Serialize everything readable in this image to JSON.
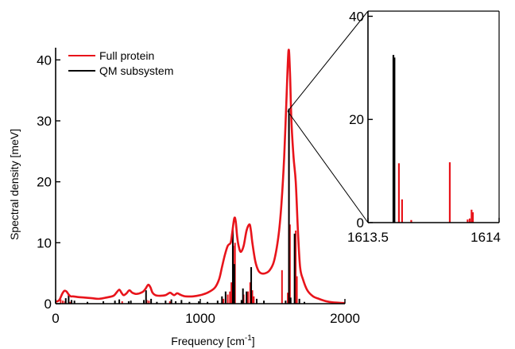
{
  "chart_data": [
    {
      "type": "line",
      "xlabel": "Frequency [cm",
      "xlabel_sup": "-1",
      "xlabel_end": "]",
      "ylabel": "Spectral density [meV]",
      "xlim": [
        0,
        2000
      ],
      "ylim": [
        0,
        42
      ],
      "x_ticks": [
        "0",
        "1000",
        "2000"
      ],
      "y_ticks": [
        "0",
        "10",
        "20",
        "30",
        "40"
      ],
      "legend": {
        "placement": "top-left",
        "entries": [
          {
            "name": "Full protein",
            "color": "#e8141b"
          },
          {
            "name": "QM subsystem",
            "color": "#000000"
          }
        ]
      },
      "series": [
        {
          "name": "Full protein",
          "color": "#e8141b",
          "style": "smooth-line",
          "x": [
            0,
            25,
            45,
            60,
            75,
            90,
            105,
            120,
            150,
            200,
            250,
            300,
            350,
            400,
            420,
            440,
            455,
            470,
            490,
            510,
            530,
            560,
            600,
            620,
            640,
            655,
            670,
            690,
            720,
            760,
            790,
            805,
            820,
            840,
            860,
            880,
            900,
            950,
            1000,
            1050,
            1100,
            1130,
            1150,
            1170,
            1190,
            1210,
            1220,
            1235,
            1245,
            1255,
            1265,
            1280,
            1300,
            1320,
            1340,
            1350,
            1360,
            1380,
            1400,
            1420,
            1450,
            1480,
            1510,
            1540,
            1560,
            1580,
            1595,
            1610,
            1620,
            1630,
            1645,
            1660,
            1675,
            1690,
            1710,
            1740,
            1780,
            1820,
            1870,
            1920,
            2000
          ],
          "y": [
            0.3,
            0.6,
            1.6,
            2.1,
            2.0,
            1.5,
            1.2,
            1.2,
            1.1,
            1.0,
            0.9,
            0.8,
            1.0,
            1.3,
            1.8,
            2.3,
            1.8,
            1.4,
            1.7,
            2.2,
            1.8,
            1.6,
            1.9,
            2.4,
            3.1,
            2.7,
            1.8,
            1.4,
            1.3,
            1.4,
            1.8,
            1.6,
            1.4,
            1.7,
            1.5,
            1.3,
            1.2,
            1.2,
            1.4,
            1.8,
            2.6,
            4.0,
            6.0,
            8.0,
            9.5,
            10.0,
            11.5,
            14.0,
            13.5,
            11.0,
            9.5,
            8.5,
            9.5,
            12.0,
            13.0,
            12.0,
            10.0,
            7.0,
            5.5,
            5.0,
            5.0,
            5.5,
            7.0,
            11.0,
            16.0,
            24.0,
            33.0,
            41.5,
            38.0,
            30.0,
            24.0,
            20.0,
            12.0,
            6.0,
            4.0,
            2.2,
            1.2,
            0.8,
            0.4,
            0.2,
            0.1
          ]
        },
        {
          "name": "Full protein sticks",
          "color": "#e8141b",
          "style": "sticks",
          "x": [
            35,
            50,
            65,
            100,
            460,
            630,
            645,
            790,
            1160,
            1190,
            1205,
            1215,
            1228,
            1240,
            1300,
            1330,
            1345,
            1360,
            1370,
            1565,
            1605,
            1613,
            1620,
            1660,
            1668
          ],
          "y": [
            0.7,
            0.5,
            0.4,
            0.3,
            0.4,
            0.6,
            0.5,
            0.4,
            0.8,
            1.5,
            2.0,
            3.5,
            9.5,
            10.0,
            1.5,
            2.0,
            3.5,
            2.2,
            1.2,
            5.5,
            1.8,
            31.0,
            13.0,
            12.0,
            4.5
          ]
        },
        {
          "name": "QM subsystem sticks",
          "color": "#000000",
          "style": "sticks",
          "x": [
            70,
            90,
            110,
            130,
            220,
            330,
            410,
            440,
            505,
            520,
            610,
            625,
            660,
            700,
            760,
            800,
            830,
            870,
            925,
            990,
            1050,
            1120,
            1150,
            1175,
            1225,
            1235,
            1285,
            1295,
            1320,
            1352,
            1390,
            1440,
            1590,
            1613,
            1625,
            1652,
            1685,
            1720
          ],
          "y": [
            0.9,
            1.5,
            0.6,
            0.5,
            0.3,
            0.4,
            0.5,
            0.7,
            0.4,
            0.5,
            0.6,
            2.2,
            0.8,
            0.3,
            0.5,
            0.7,
            0.4,
            0.6,
            0.3,
            0.4,
            0.3,
            0.5,
            1.2,
            2.0,
            12.5,
            6.5,
            0.6,
            2.5,
            2.0,
            6.0,
            0.8,
            0.5,
            0.5,
            32.0,
            1.0,
            11.5,
            0.8,
            0.3
          ]
        }
      ]
    },
    {
      "type": "bar",
      "xlim": [
        1613.5,
        1614
      ],
      "ylim": [
        0,
        41
      ],
      "x_ticks": [
        "1613.5",
        "1614"
      ],
      "y_ticks": [
        "0",
        "20",
        "40"
      ],
      "series": [
        {
          "name": "Full protein",
          "color": "#e8141b",
          "x": [
            1613.618,
            1613.63,
            1613.665,
            1613.812,
            1613.88,
            1613.888,
            1613.895,
            1613.9
          ],
          "y": [
            11.5,
            4.5,
            0.5,
            11.7,
            0.6,
            0.8,
            2.5,
            2.0
          ]
        },
        {
          "name": "QM subsystem",
          "color": "#000000",
          "x": [
            1613.597,
            1613.599,
            1613.601
          ],
          "y": [
            32.5,
            31.5,
            32.0
          ]
        }
      ]
    }
  ]
}
